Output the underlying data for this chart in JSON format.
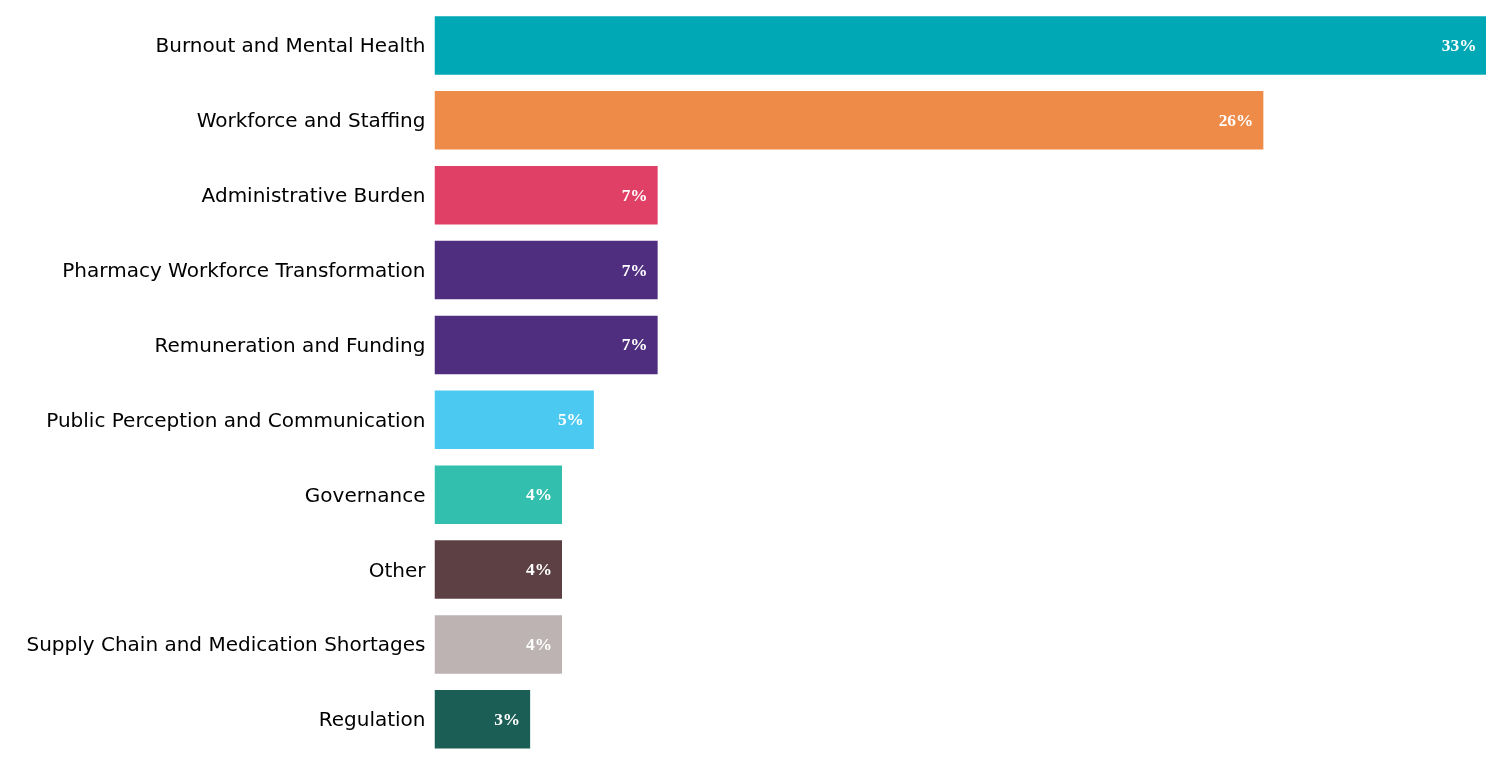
{
  "chart_data": {
    "type": "bar",
    "orientation": "horizontal",
    "tick_labels": "y",
    "categories": [
      "Burnout and Mental Health",
      "Workforce and Staffing",
      "Administrative Burden",
      "Pharmacy Workforce Transformation",
      "Remuneration and Funding",
      "Public Perception and Communication",
      "Governance",
      "Other",
      "Supply Chain and Medication Shortages",
      "Regulation"
    ],
    "values": [
      33,
      26,
      7,
      7,
      7,
      5,
      4,
      4,
      4,
      3
    ],
    "value_labels": [
      "33%",
      "26%",
      "7%",
      "7%",
      "7%",
      "5%",
      "4%",
      "4%",
      "4%",
      "3%"
    ],
    "colors": [
      "#00a8b5",
      "#ef8b48",
      "#e04066",
      "#4f2d7f",
      "#4f2d7f",
      "#4cc9f0",
      "#33bfad",
      "#5c4044",
      "#bdb3b3",
      "#1b5e55"
    ]
  }
}
